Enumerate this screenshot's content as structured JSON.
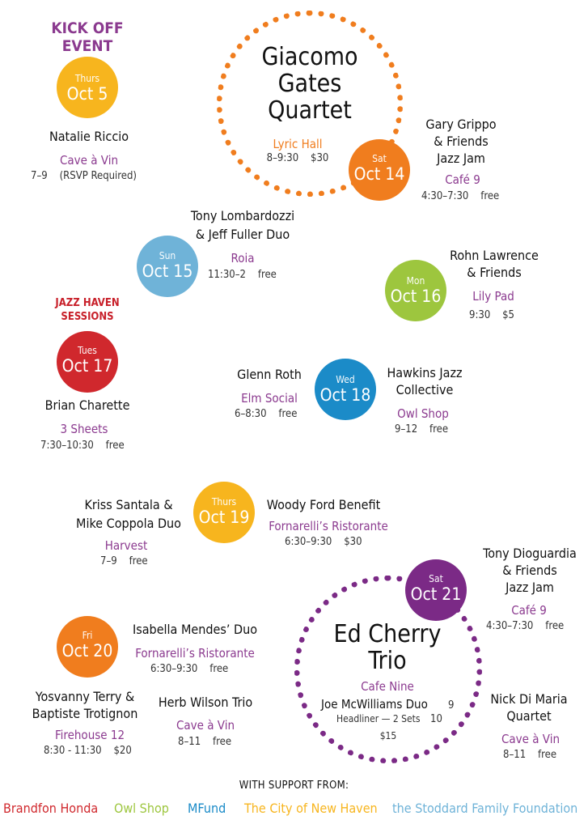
{
  "kickoff": {
    "line1": "KICK OFF",
    "line2": "EVENT"
  },
  "jazz_haven": {
    "line1": "JAZZ HAVEN",
    "line2": "SESSIONS"
  },
  "headline_gates": {
    "line1": "Giacomo",
    "line2": "Gates",
    "line3": "Quartet",
    "venue": "Lyric Hall",
    "time": "8–9:30",
    "price": "$30"
  },
  "headline_cherry": {
    "line1": "Ed Cherry",
    "line2": "Trio",
    "venue": "Cafe Nine",
    "sub1_name": "Joe McWilliams Duo",
    "sub1_time": "9",
    "sub2_name": "Headliner — 2 Sets",
    "sub2_time": "10",
    "price": "$15"
  },
  "dates": {
    "oct5": {
      "dow": "Thurs",
      "day": "Oct 5",
      "color": "#f7b51e"
    },
    "oct14": {
      "dow": "Sat",
      "day": "Oct 14",
      "color": "#f07d1e"
    },
    "oct15": {
      "dow": "Sun",
      "day": "Oct 15",
      "color": "#6fb3d8"
    },
    "oct16": {
      "dow": "Mon",
      "day": "Oct 16",
      "color": "#9dc63e"
    },
    "oct17": {
      "dow": "Tues",
      "day": "Oct 17",
      "color": "#d0282d"
    },
    "oct18": {
      "dow": "Wed",
      "day": "Oct 18",
      "color": "#1b8bc8"
    },
    "oct19": {
      "dow": "Thurs",
      "day": "Oct 19",
      "color": "#f7b51e"
    },
    "oct20": {
      "dow": "Fri",
      "day": "Oct 20",
      "color": "#f07d1e"
    },
    "oct21": {
      "dow": "Sat",
      "day": "Oct 21",
      "color": "#7b2a86"
    }
  },
  "events": {
    "natalie": {
      "name": "Natalie Riccio",
      "venue": "Cave à Vin",
      "time": "7–9    (RSVP Required)"
    },
    "grippo": {
      "line1": "Gary Grippo",
      "line2": "& Friends",
      "line3": "Jazz Jam",
      "venue": "Café 9",
      "time": "4:30–7:30    free"
    },
    "lombardozzi": {
      "line1": "Tony Lombardozzi",
      "line2": "& Jeff Fuller Duo",
      "venue": "Roia",
      "time": "11:30–2    free"
    },
    "lawrence": {
      "line1": "Rohn Lawrence",
      "line2": "& Friends",
      "venue": "Lily Pad",
      "time": "9:30    $5"
    },
    "charette": {
      "name": "Brian Charette",
      "venue": "3 Sheets",
      "time": "7:30–10:30    free"
    },
    "roth": {
      "name": "Glenn Roth",
      "venue": "Elm Social",
      "time": "6–8:30    free"
    },
    "hawkins": {
      "line1": "Hawkins Jazz",
      "line2": "Collective",
      "venue": "Owl Shop",
      "time": "9–12    free"
    },
    "santala": {
      "line1": "Kriss Santala &",
      "line2": "Mike Coppola Duo",
      "venue": "Harvest",
      "time": "7–9    free"
    },
    "ford": {
      "name": "Woody Ford Benefit",
      "venue": "Fornarelli’s Ristorante",
      "time": "6:30–9:30    $30"
    },
    "dioguardia": {
      "line1": "Tony Dioguardia",
      "line2": "& Friends",
      "line3": "Jazz Jam",
      "venue": "Café 9",
      "time": "4:30–7:30    free"
    },
    "mendes": {
      "name": "Isabella Mendes’ Duo",
      "venue": "Fornarelli’s Ristorante",
      "time": "6:30–9:30    free"
    },
    "terry": {
      "line1": "Yosvanny Terry  &",
      "line2": "Baptiste Trotignon",
      "venue": "Firehouse 12",
      "time": "8:30 - 11:30    $20"
    },
    "wilson": {
      "name": "Herb Wilson Trio",
      "venue": "Cave à Vin",
      "time": "8–11    free"
    },
    "dimaria": {
      "line1": "Nick Di Maria",
      "line2": "Quartet",
      "venue": "Cave à Vin",
      "time": "8–11    free"
    }
  },
  "support": {
    "heading": "WITH SUPPORT FROM:",
    "sponsors": [
      {
        "name": "Brandfon Honda",
        "color": "#d0282d"
      },
      {
        "name": "Owl Shop",
        "color": "#9dc63e"
      },
      {
        "name": "MFund",
        "color": "#1b8bc8"
      },
      {
        "name": "The City of New Haven",
        "color": "#f7b51e"
      },
      {
        "name": "the Stoddard Family Foundation",
        "color": "#6fb3d8"
      }
    ]
  }
}
